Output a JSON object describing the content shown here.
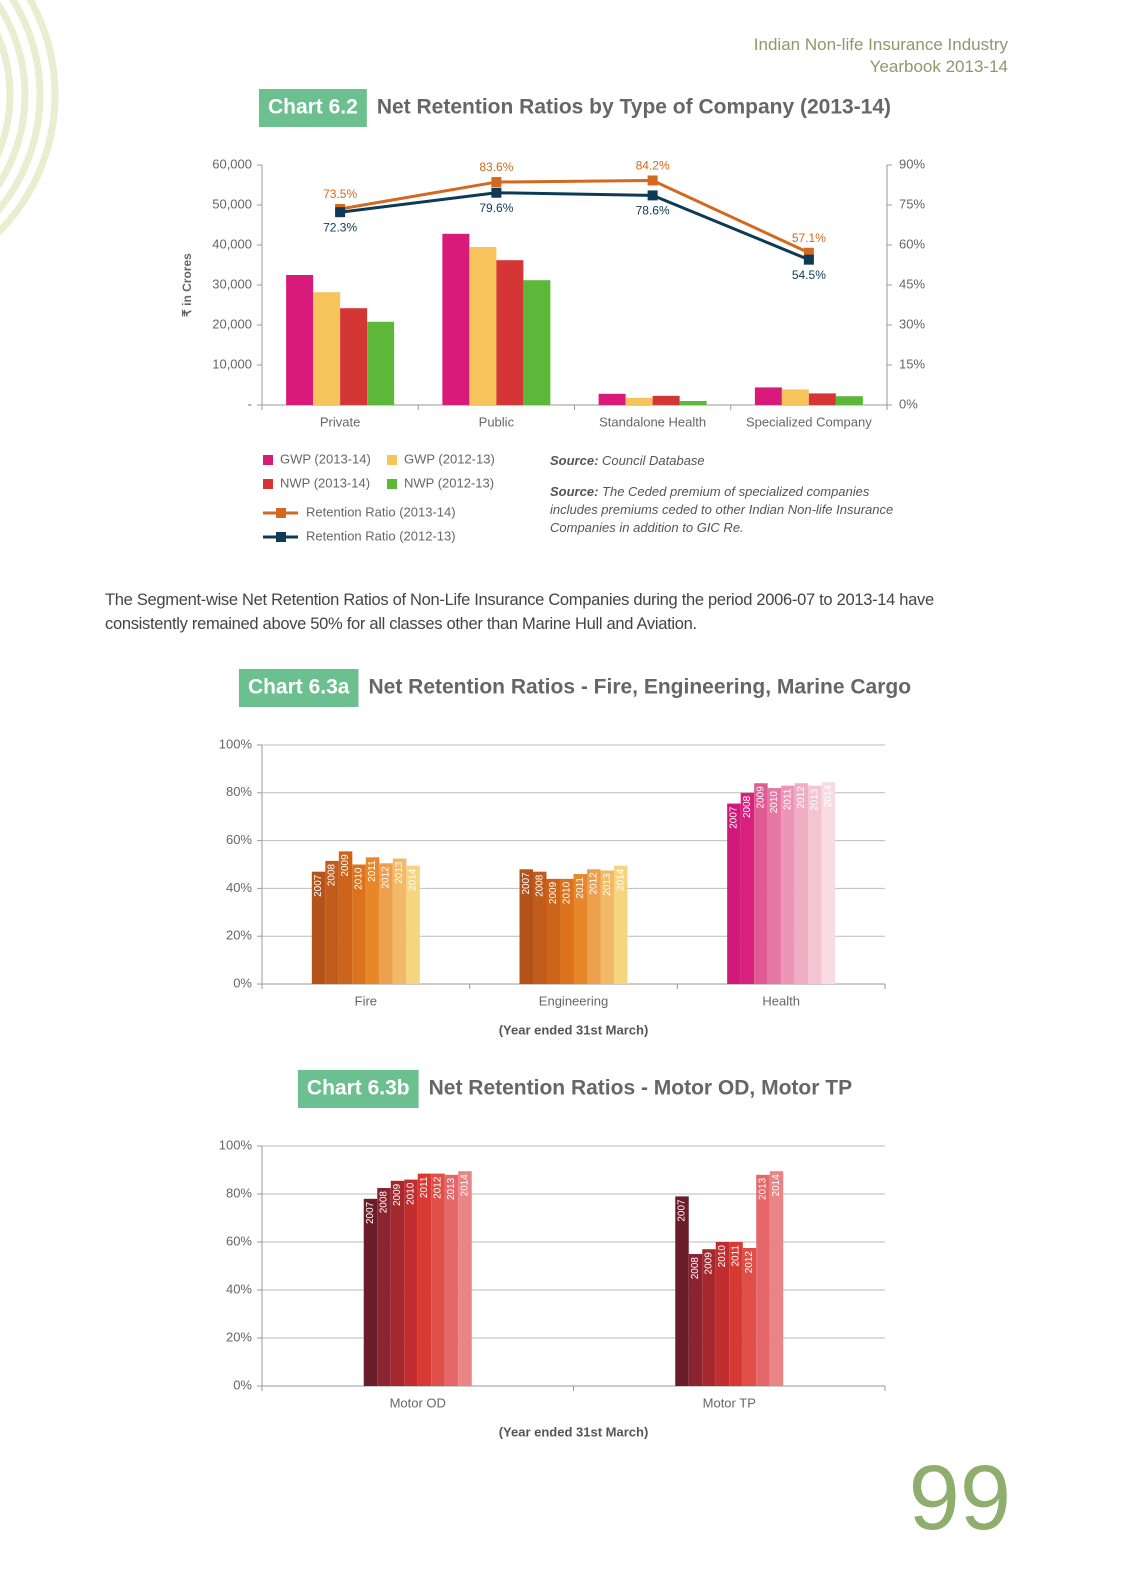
{
  "header": {
    "line1": "Indian Non-life Insurance Industry",
    "line2": "Yearbook 2013-14"
  },
  "paragraph": "The Segment-wise Net Retention Ratios of Non-Life Insurance Companies during the period 2006-07 to 2013-14 have consistently remained above 50% for all classes other than Marine Hull and Aviation.",
  "page_number": "99",
  "chart_data": [
    {
      "type": "bar_line",
      "badge": "Chart 6.2",
      "title": "Net Retention Ratios by Type of Company (2013-14)",
      "ylabel": "₹ in Crores",
      "grid": false,
      "categories": [
        "Private",
        "Public",
        "Standalone Health",
        "Specialized Company"
      ],
      "ylim": [
        0,
        60000
      ],
      "yticks": [
        {
          "value": 0,
          "label": "-"
        },
        {
          "value": 10000,
          "label": "10,000"
        },
        {
          "value": 20000,
          "label": "20,000"
        },
        {
          "value": 30000,
          "label": "30,000"
        },
        {
          "value": 40000,
          "label": "40,000"
        },
        {
          "value": 50000,
          "label": "50,000"
        },
        {
          "value": 60000,
          "label": "60,000"
        }
      ],
      "y2lim": [
        0,
        90
      ],
      "y2ticks": [
        {
          "value": 0,
          "label": "0%"
        },
        {
          "value": 15,
          "label": "15%"
        },
        {
          "value": 30,
          "label": "30%"
        },
        {
          "value": 45,
          "label": "45%"
        },
        {
          "value": 60,
          "label": "60%"
        },
        {
          "value": 75,
          "label": "75%"
        },
        {
          "value": 90,
          "label": "90%"
        }
      ],
      "series": [
        {
          "name": "GWP (2013-14)",
          "color": "#d81b7a",
          "values": [
            32500,
            42800,
            2800,
            4400
          ]
        },
        {
          "name": "GWP (2012-13)",
          "color": "#f6c45a",
          "values": [
            28200,
            39500,
            1800,
            3900
          ]
        },
        {
          "name": "NWP (2013-14)",
          "color": "#d43535",
          "values": [
            24200,
            36200,
            2300,
            2900
          ]
        },
        {
          "name": "NWP (2012-13)",
          "color": "#5db83a",
          "values": [
            20800,
            31200,
            1000,
            2200
          ]
        },
        {
          "name": "Retention Ratio (2013-14)",
          "color": "#d2691e",
          "axis": "y2",
          "values": [
            73.5,
            83.6,
            84.2,
            57.1
          ],
          "value_labels": [
            "73.5%",
            "83.6%",
            "84.2%",
            "57.1%"
          ]
        },
        {
          "name": "Retention Ratio (2012-13)",
          "color": "#0d3b56",
          "axis": "y2",
          "values": [
            72.3,
            79.6,
            78.6,
            54.5
          ],
          "value_labels": [
            "72.3%",
            "79.6%",
            "78.6%",
            "54.5%"
          ]
        }
      ],
      "sources": [
        {
          "label": "Source:",
          "text": "Council Database"
        },
        {
          "label": "Source:",
          "text": "The Ceded premium of specialized companies includes premiums ceded to other Indian Non-life Insurance Companies in addition to GIC Re."
        }
      ]
    },
    {
      "type": "bar",
      "badge": "Chart 6.3a",
      "title": "Net Retention Ratios - Fire, Engineering, Marine Cargo",
      "xlabel": "(Year ended 31st March)",
      "grid": true,
      "categories": [
        "Fire",
        "Engineering",
        "Health"
      ],
      "ylim": [
        0,
        100
      ],
      "yticks": [
        {
          "value": 0,
          "label": "0%"
        },
        {
          "value": 20,
          "label": "20%"
        },
        {
          "value": 40,
          "label": "40%"
        },
        {
          "value": 60,
          "label": "60%"
        },
        {
          "value": 80,
          "label": "80%"
        },
        {
          "value": 100,
          "label": "100%"
        }
      ],
      "series": [
        {
          "name": "2007",
          "colors": [
            "#b5541a",
            "#b5541a",
            "#d0197a"
          ],
          "values": [
            47,
            48,
            75.5
          ]
        },
        {
          "name": "2008",
          "colors": [
            "#c25c1a",
            "#c25c1a",
            "#d8207f"
          ],
          "values": [
            51.5,
            47,
            80
          ]
        },
        {
          "name": "2009",
          "colors": [
            "#cd641c",
            "#cd641c",
            "#e05a94"
          ],
          "values": [
            55.5,
            44,
            84
          ]
        },
        {
          "name": "2010",
          "colors": [
            "#da721e",
            "#da721e",
            "#e679a4"
          ],
          "values": [
            50,
            44,
            82
          ]
        },
        {
          "name": "2011",
          "colors": [
            "#e6882a",
            "#e6882a",
            "#ec95b5"
          ],
          "values": [
            53,
            46,
            83
          ]
        },
        {
          "name": "2012",
          "colors": [
            "#ec9f4c",
            "#ec9f4c",
            "#f1adc4"
          ],
          "values": [
            50.5,
            48,
            84
          ]
        },
        {
          "name": "2013",
          "colors": [
            "#f2ba68",
            "#f2ba68",
            "#f5c4d2"
          ],
          "values": [
            52.5,
            47.5,
            83
          ]
        },
        {
          "name": "2014",
          "colors": [
            "#f7d47e",
            "#f7d47e",
            "#f9dce3"
          ],
          "values": [
            49.5,
            49.5,
            84.5
          ]
        }
      ]
    },
    {
      "type": "bar",
      "badge": "Chart 6.3b",
      "title": "Net Retention Ratios - Motor OD, Motor TP",
      "xlabel": "(Year ended 31st March)",
      "grid": true,
      "categories": [
        "Motor OD",
        "Motor TP"
      ],
      "ylim": [
        0,
        100
      ],
      "yticks": [
        {
          "value": 0,
          "label": "0%"
        },
        {
          "value": 20,
          "label": "20%"
        },
        {
          "value": 40,
          "label": "40%"
        },
        {
          "value": 60,
          "label": "60%"
        },
        {
          "value": 80,
          "label": "80%"
        },
        {
          "value": 100,
          "label": "100%"
        }
      ],
      "series": [
        {
          "name": "2007",
          "colors": [
            "#6b1e2a",
            "#6b1e2a"
          ],
          "values": [
            78,
            79
          ]
        },
        {
          "name": "2008",
          "colors": [
            "#8a2431",
            "#8a2431"
          ],
          "values": [
            82.5,
            55
          ]
        },
        {
          "name": "2009",
          "colors": [
            "#a5282f",
            "#a5282f"
          ],
          "values": [
            85.5,
            57
          ]
        },
        {
          "name": "2010",
          "colors": [
            "#c02d2e",
            "#c02d2e"
          ],
          "values": [
            86,
            60
          ]
        },
        {
          "name": "2011",
          "colors": [
            "#d63a32",
            "#d63a32"
          ],
          "values": [
            88.5,
            60
          ]
        },
        {
          "name": "2012",
          "colors": [
            "#e04e48",
            "#e04e48"
          ],
          "values": [
            88.5,
            57.5
          ]
        },
        {
          "name": "2013",
          "colors": [
            "#e5676a",
            "#e5676a"
          ],
          "values": [
            88,
            88
          ]
        },
        {
          "name": "2014",
          "colors": [
            "#ea8585",
            "#ea8585"
          ],
          "values": [
            89.5,
            89.5
          ]
        }
      ]
    }
  ]
}
